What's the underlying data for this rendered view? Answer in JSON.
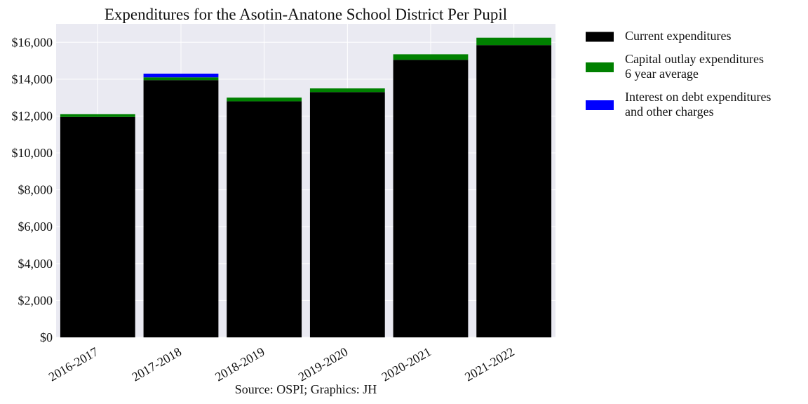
{
  "chart_data": {
    "type": "bar",
    "stacked": true,
    "title": "Expenditures for the Asotin-Anatone School District Per Pupil",
    "footer": "Source: OSPI; Graphics: JH",
    "categories": [
      "2016-2017",
      "2017-2018",
      "2018-2019",
      "2019-2020",
      "2020-2021",
      "2021-2022"
    ],
    "series": [
      {
        "name": "Current expenditures",
        "legend_lines": [
          "Current expenditures"
        ],
        "color": "#000000",
        "values": [
          11950,
          13950,
          12800,
          13300,
          15050,
          15850
        ]
      },
      {
        "name": "Capital outlay expenditures 6 year average",
        "legend_lines": [
          "Capital outlay expenditures",
          "6 year average"
        ],
        "color": "#008000",
        "values": [
          150,
          150,
          200,
          200,
          300,
          400
        ]
      },
      {
        "name": "Interest on debt expenditures and other charges",
        "legend_lines": [
          "Interest on debt expenditures",
          "and other charges"
        ],
        "color": "#0000ff",
        "values": [
          0,
          200,
          0,
          0,
          0,
          0
        ]
      }
    ],
    "ylim": [
      0,
      17000
    ],
    "yticks": [
      0,
      2000,
      4000,
      6000,
      8000,
      10000,
      12000,
      14000,
      16000
    ],
    "ytick_labels": [
      "$0",
      "$2,000",
      "$4,000",
      "$6,000",
      "$8,000",
      "$10,000",
      "$12,000",
      "$14,000",
      "$16,000"
    ],
    "grid": true,
    "legend_position": "outside-right",
    "plot_background": "#eaeaf2"
  }
}
